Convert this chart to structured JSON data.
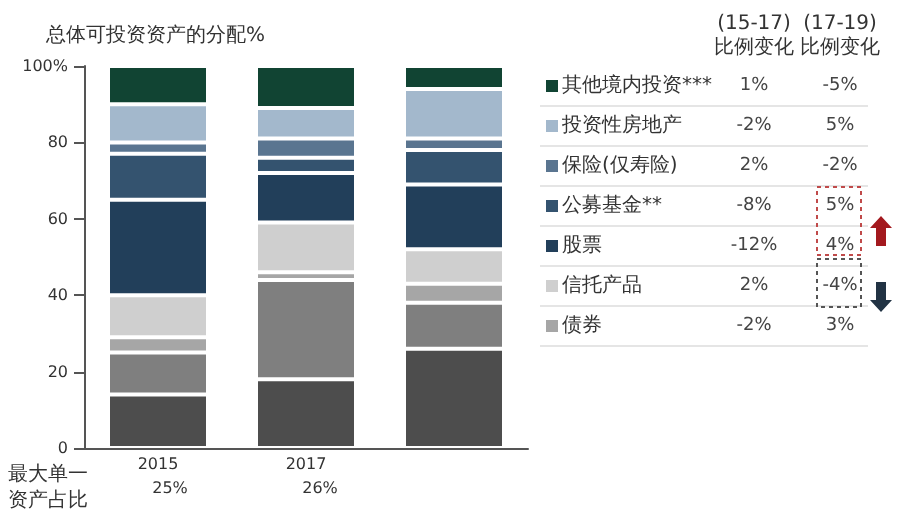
{
  "chart_data": {
    "type": "bar",
    "stacked": true,
    "title": "总体可投资资产的分配%",
    "categories": [
      "2015",
      "2017",
      null
    ],
    "ylim": [
      0,
      100
    ],
    "yticks": [
      0,
      20,
      40,
      60,
      {
        "value": 100,
        "label": "100%"
      },
      80
    ],
    "series": [
      {
        "color": "#4d4d4d",
        "values": [
          14,
          18,
          26
        ]
      },
      {
        "color": "#7f7f7f",
        "values": [
          11,
          26,
          12
        ]
      },
      {
        "name": "债券",
        "color": "#a6a6a6",
        "values": [
          4,
          2,
          5
        ]
      },
      {
        "name": "信托产品",
        "color": "#cfcfcf",
        "values": [
          11,
          13,
          9
        ]
      },
      {
        "name": "股票",
        "color": "#223f5a",
        "values": [
          25,
          13,
          17
        ]
      },
      {
        "name": "公募基金**",
        "color": "#34536f",
        "values": [
          12,
          4,
          9
        ]
      },
      {
        "name": "保险(仅寿险)",
        "color": "#5a7590",
        "values": [
          3,
          5,
          3
        ]
      },
      {
        "name": "投资性房地产",
        "color": "#a3b8cc",
        "values": [
          10,
          8,
          13
        ]
      },
      {
        "name": "其他境内投资***",
        "color": "#114433",
        "values": [
          10,
          11,
          6
        ]
      }
    ],
    "legend": "right",
    "grid": false,
    "annotations": [
      "(15-17)\n比例变化",
      "(17-19)\n比例变化",
      "1%",
      "-5%",
      "-2%",
      "5%",
      "2%",
      "-2%",
      "-8%",
      "5%",
      "-12%",
      "4%",
      "2%",
      "-4%",
      "-2%",
      "3%",
      "最大单一资产占比",
      "25%",
      "26%"
    ]
  }
}
